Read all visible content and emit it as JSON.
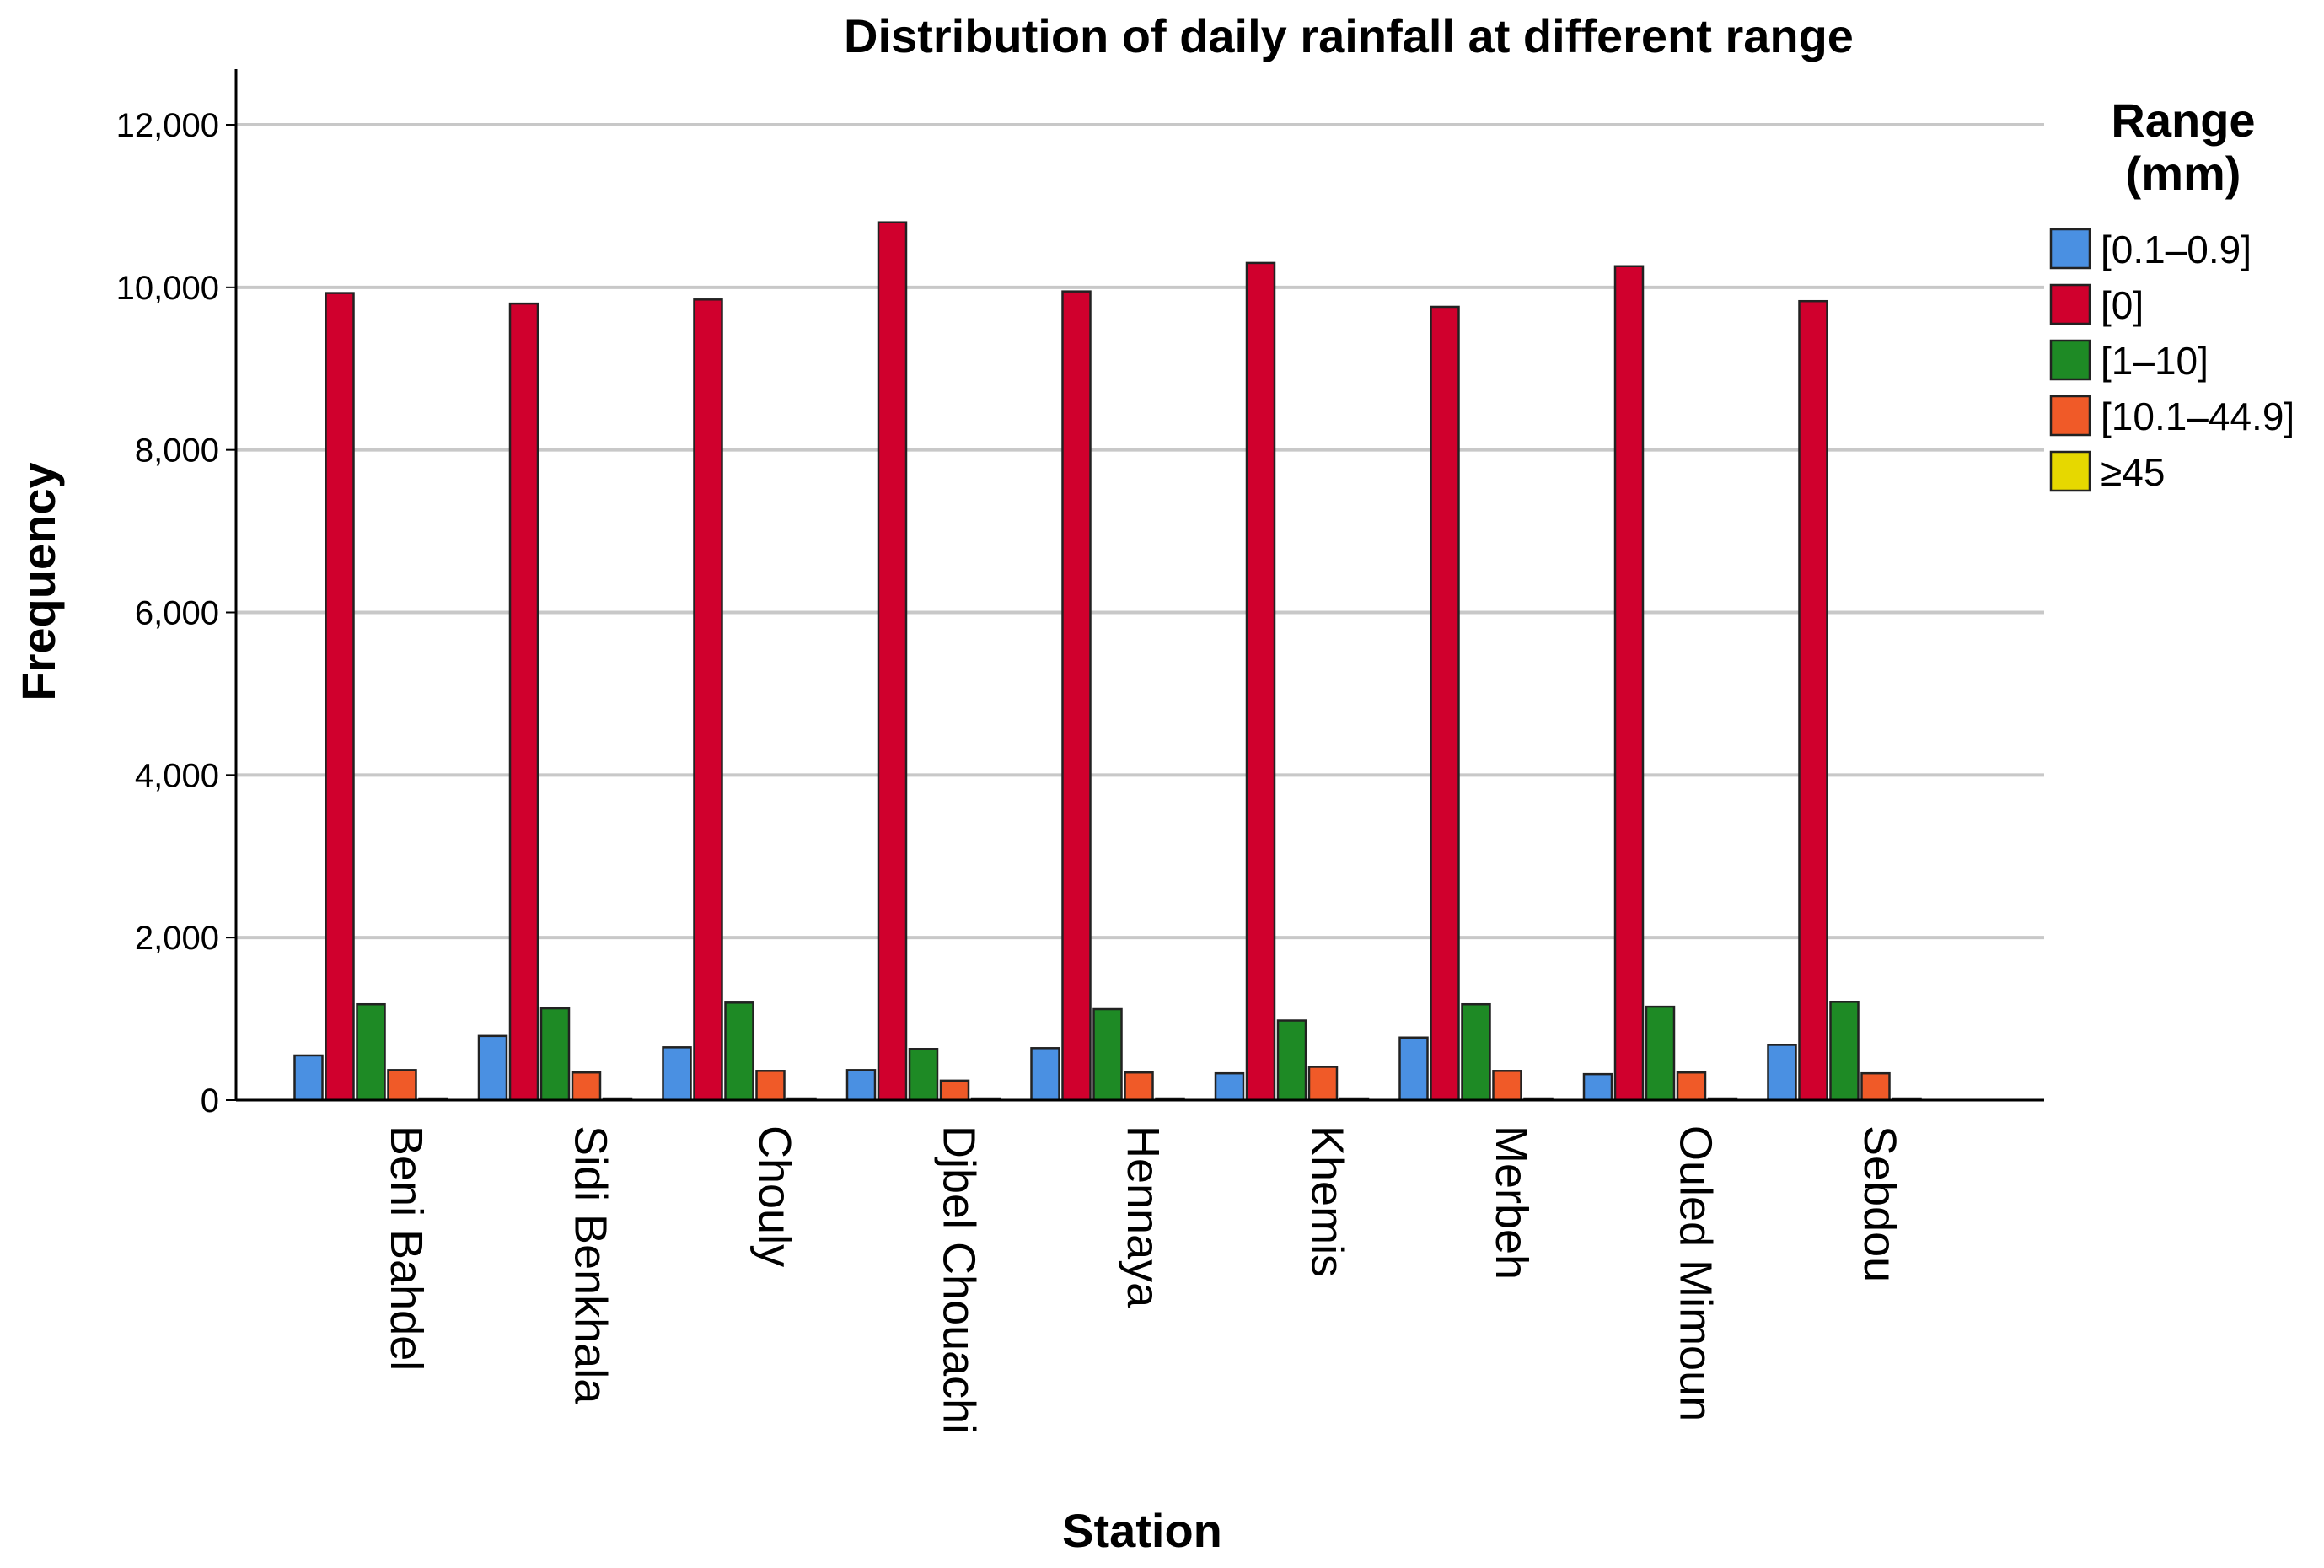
{
  "chart_data": {
    "type": "bar",
    "title": "Distribution of daily rainfall at different range",
    "xlabel": "Station",
    "ylabel": "Frequency",
    "ylim": [
      0,
      12000
    ],
    "yticks": [
      0,
      2000,
      4000,
      6000,
      8000,
      10000,
      12000
    ],
    "ytick_labels": [
      "0",
      "2,000",
      "4,000",
      "6,000",
      "8,000",
      "10,000",
      "12,000"
    ],
    "grid": true,
    "legend": {
      "title_line1": "Range",
      "title_line2": "(mm)",
      "position": "right"
    },
    "categories": [
      "Beni Bahdel",
      "Sidi Benkhala",
      "Chouly",
      "Djbel Chouachi",
      "Hennaya",
      "Khemis",
      "Merbeh",
      "Ouled Mimoun",
      "Sebdou"
    ],
    "series": [
      {
        "name": "[0.1–0.9]",
        "color": "#4a90e2",
        "values": [
          550,
          790,
          650,
          370,
          640,
          330,
          770,
          320,
          680
        ]
      },
      {
        "name": "[0]",
        "color": "#d0002d",
        "values": [
          9930,
          9800,
          9850,
          10800,
          9950,
          10300,
          9760,
          10260,
          9830
        ]
      },
      {
        "name": "[1–10]",
        "color": "#1e8a25",
        "values": [
          1180,
          1130,
          1200,
          630,
          1120,
          980,
          1180,
          1150,
          1210
        ]
      },
      {
        "name": "[10.1–44.9]",
        "color": "#f05a28",
        "values": [
          370,
          340,
          360,
          240,
          340,
          410,
          360,
          340,
          330
        ]
      },
      {
        "name": "≥45",
        "color": "#e6d800",
        "values": [
          20,
          15,
          20,
          15,
          20,
          20,
          15,
          15,
          15
        ]
      }
    ]
  }
}
